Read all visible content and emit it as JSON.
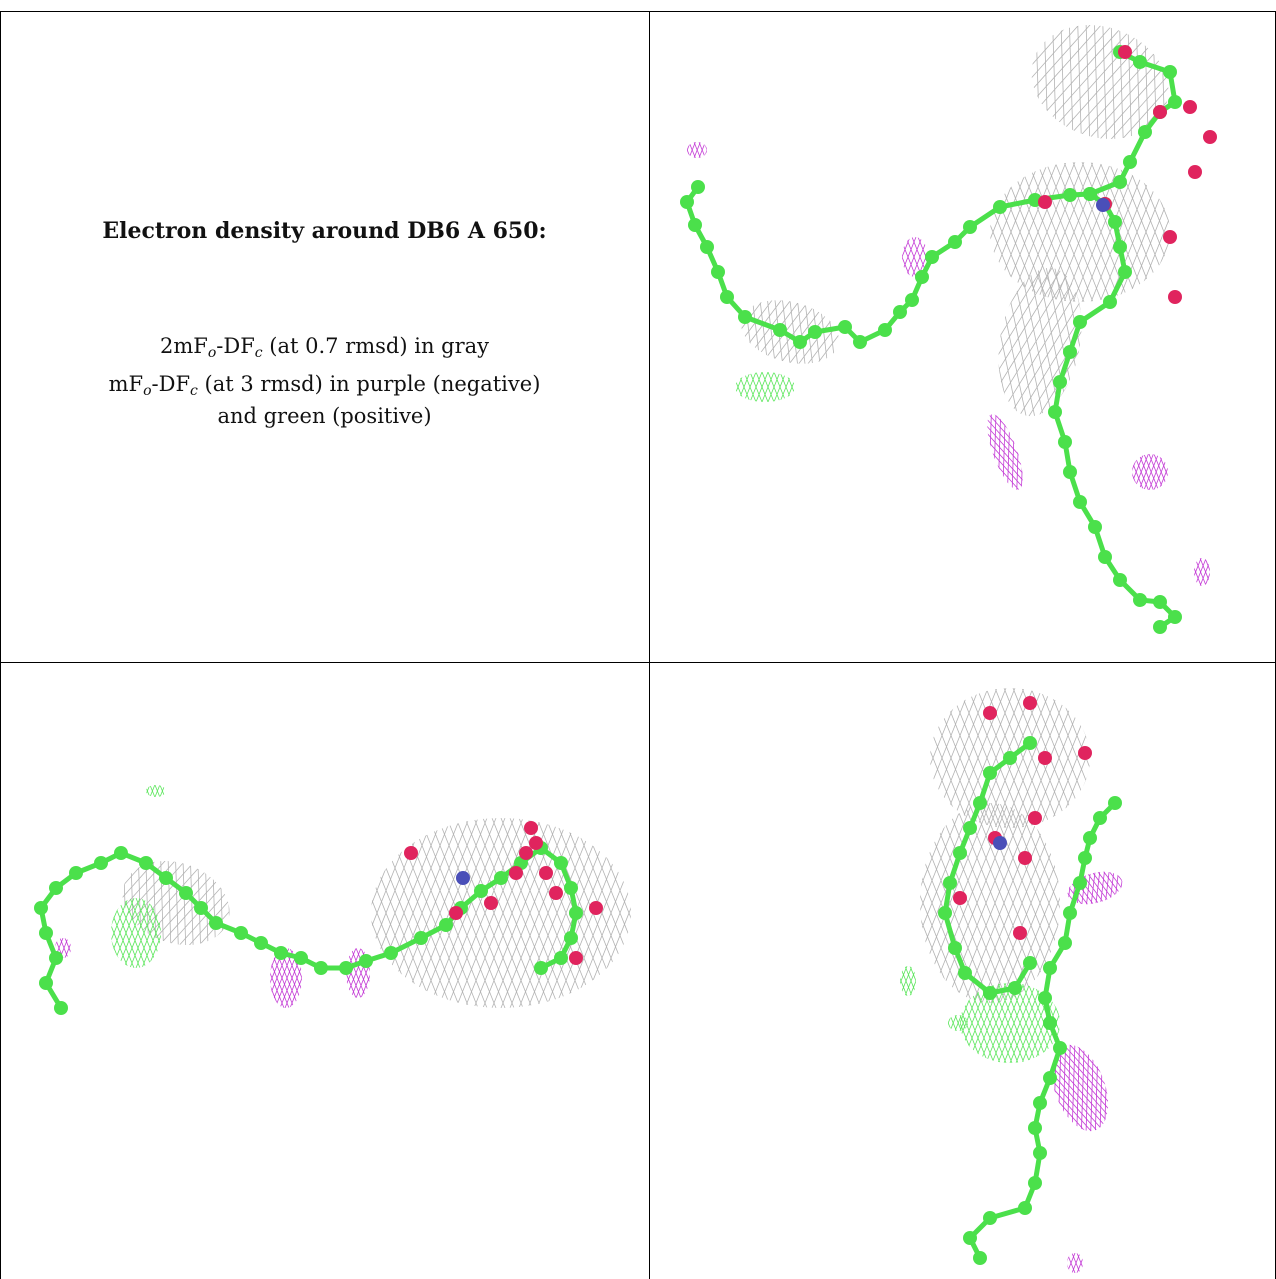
{
  "caption": {
    "title": "Electron density around DB6 A 650:",
    "line1": {
      "a": "2mF",
      "sub1": "o",
      "b": "-DF",
      "sub2": "c",
      "rest": " (at 0.7 rmsd) in gray"
    },
    "line2": {
      "a": "mF",
      "sub1": "o",
      "b": "-DF",
      "sub2": "c",
      "rest": " (at 3 rmsd) in purple (negative)"
    },
    "line3": "and green (positive)"
  },
  "colors": {
    "carbon": "#4be04b",
    "oxygen": "#e0245e",
    "nitrogen": "#4a4fb8",
    "mesh_2fofc": "#b4b4b4",
    "mesh_negative": "#c43cd6",
    "mesh_positive": "#5be65b"
  },
  "panels": [
    "view-1",
    "view-2",
    "view-3"
  ]
}
